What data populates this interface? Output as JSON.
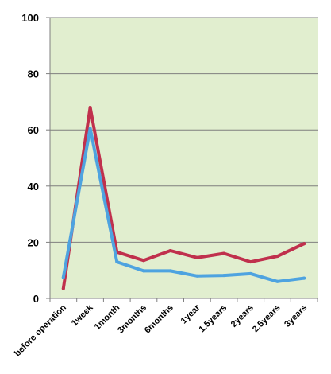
{
  "chart_data": {
    "type": "line",
    "title": "",
    "xlabel": "",
    "ylabel": "",
    "categories": [
      "before operation",
      "1week",
      "1month",
      "3months",
      "6months",
      "1year",
      "1.5years",
      "2years",
      "2.5years",
      "3years"
    ],
    "ylim": [
      0,
      100
    ],
    "yticks": [
      0,
      20,
      40,
      60,
      80,
      100
    ],
    "grid": true,
    "legend": "none",
    "background": "#e1eecf",
    "gridline_color": "#7f7f7f",
    "series": [
      {
        "color": "#c0304d",
        "values": [
          3.5,
          68,
          16.5,
          13.5,
          17,
          14.5,
          16,
          13,
          15,
          19.5
        ]
      },
      {
        "color": "#4ea3e0",
        "values": [
          7.5,
          60.5,
          13,
          9.8,
          9.8,
          8,
          8.2,
          8.8,
          6,
          7.2
        ]
      }
    ]
  }
}
